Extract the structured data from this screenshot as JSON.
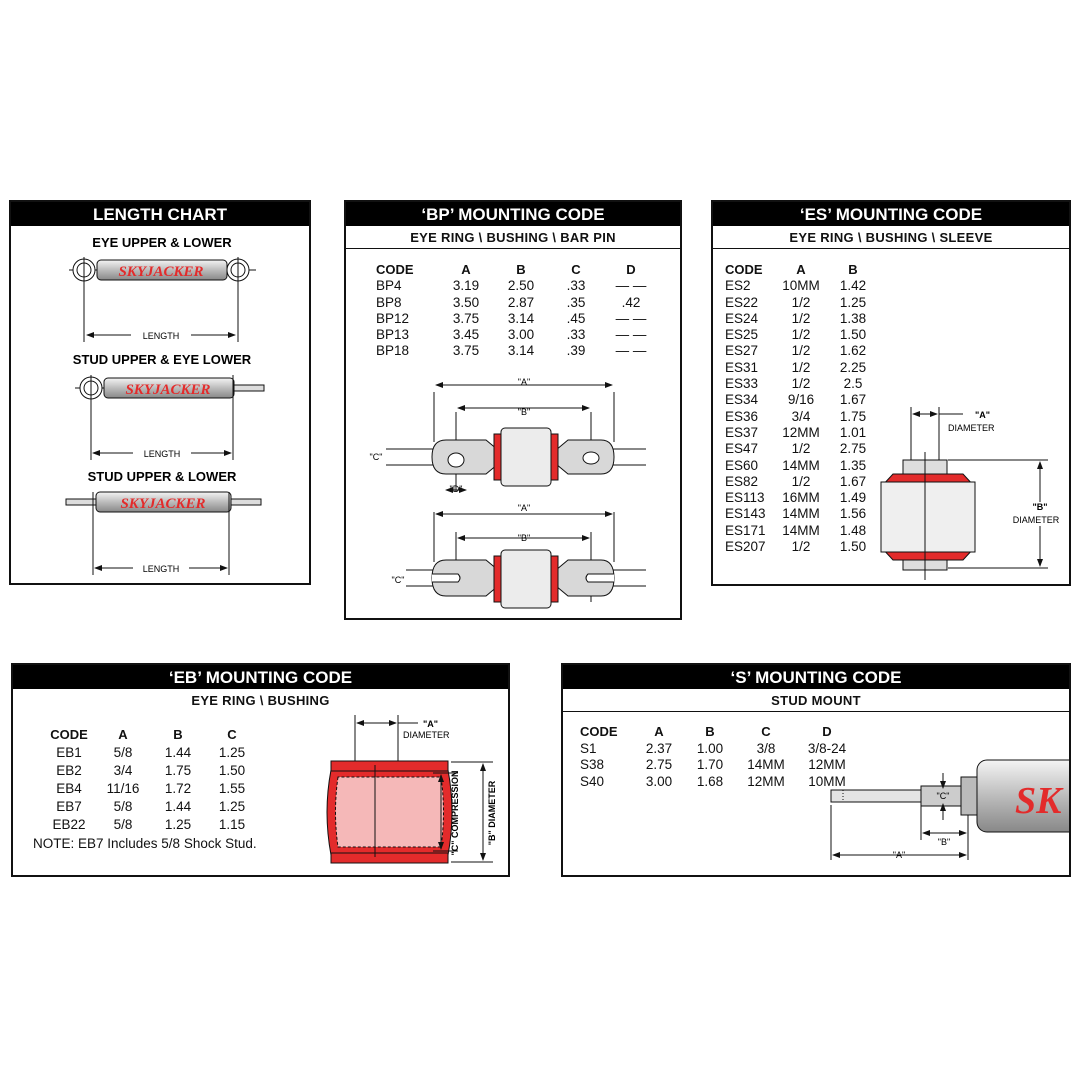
{
  "colors": {
    "accent_red": "#e32b2b",
    "header_bg": "#000000"
  },
  "length_chart": {
    "title": "LENGTH CHART",
    "configs": [
      {
        "label": "EYE UPPER & LOWER",
        "dim": "LENGTH"
      },
      {
        "label": "STUD UPPER & EYE LOWER",
        "dim": "LENGTH"
      },
      {
        "label": "STUD UPPER & LOWER",
        "dim": "LENGTH"
      }
    ],
    "logo": "SKYJACKER"
  },
  "bp": {
    "title": "‘BP’ MOUNTING CODE",
    "subtitle": "EYE RING \\ BUSHING \\ BAR PIN",
    "columns": [
      "CODE",
      "A",
      "B",
      "C",
      "D"
    ],
    "rows": [
      [
        "BP4",
        "3.19",
        "2.50",
        ".33",
        "— —"
      ],
      [
        "BP8",
        "3.50",
        "2.87",
        ".35",
        ".42"
      ],
      [
        "BP12",
        "3.75",
        "3.14",
        ".45",
        "— —"
      ],
      [
        "BP13",
        "3.45",
        "3.00",
        ".33",
        "— —"
      ],
      [
        "BP18",
        "3.75",
        "3.14",
        ".39",
        "— —"
      ]
    ],
    "diagram": {
      "a": "\"A\"",
      "b": "\"B\"",
      "c": "\"C\"",
      "d": "\"D\""
    }
  },
  "es": {
    "title": "‘ES’ MOUNTING CODE",
    "subtitle": "EYE RING \\ BUSHING \\ SLEEVE",
    "columns": [
      "CODE",
      "A",
      "B"
    ],
    "rows": [
      [
        "ES2",
        "10MM",
        "1.42"
      ],
      [
        "ES22",
        "1/2",
        "1.25"
      ],
      [
        "ES24",
        "1/2",
        "1.38"
      ],
      [
        "ES25",
        "1/2",
        "1.50"
      ],
      [
        "ES27",
        "1/2",
        "1.62"
      ],
      [
        "ES31",
        "1/2",
        "2.25"
      ],
      [
        "ES33",
        "1/2",
        "2.5"
      ],
      [
        "ES34",
        "9/16",
        "1.67"
      ],
      [
        "ES36",
        "3/4",
        "1.75"
      ],
      [
        "ES37",
        "12MM",
        "1.01"
      ],
      [
        "ES47",
        "1/2",
        "2.75"
      ],
      [
        "ES60",
        "14MM",
        "1.35"
      ],
      [
        "ES82",
        "1/2",
        "1.67"
      ],
      [
        "ES113",
        "16MM",
        "1.49"
      ],
      [
        "ES143",
        "14MM",
        "1.56"
      ],
      [
        "ES171",
        "14MM",
        "1.48"
      ],
      [
        "ES207",
        "1/2",
        "1.50"
      ]
    ],
    "diagram": {
      "a": "\"A\"",
      "a_sub": "DIAMETER",
      "b": "\"B\"",
      "b_sub": "DIAMETER"
    }
  },
  "eb": {
    "title": "‘EB’ MOUNTING CODE",
    "subtitle": "EYE RING \\ BUSHING",
    "columns": [
      "CODE",
      "A",
      "B",
      "C"
    ],
    "rows": [
      [
        "EB1",
        "5/8",
        "1.44",
        "1.25"
      ],
      [
        "EB2",
        "3/4",
        "1.75",
        "1.50"
      ],
      [
        "EB4",
        "11/16",
        "1.72",
        "1.55"
      ],
      [
        "EB7",
        "5/8",
        "1.44",
        "1.25"
      ],
      [
        "EB22",
        "5/8",
        "1.25",
        "1.15"
      ]
    ],
    "note": "NOTE: EB7 Includes 5/8 Shock Stud.",
    "diagram": {
      "a": "\"A\"",
      "a_sub": "DIAMETER",
      "c": "\"C\" COMPRESSION",
      "b": "\"B\" DIAMETER"
    }
  },
  "s": {
    "title": "‘S’ MOUNTING CODE",
    "subtitle": "STUD MOUNT",
    "columns": [
      "CODE",
      "A",
      "B",
      "C",
      "D"
    ],
    "rows": [
      [
        "S1",
        "2.37",
        "1.00",
        "3/8",
        "3/8-24"
      ],
      [
        "S38",
        "2.75",
        "1.70",
        "14MM",
        "12MM"
      ],
      [
        "S40",
        "3.00",
        "1.68",
        "12MM",
        "10MM"
      ]
    ],
    "diagram": {
      "a": "\"A\"",
      "b": "\"B\"",
      "c": "\"C\"",
      "logo": "SK"
    }
  }
}
